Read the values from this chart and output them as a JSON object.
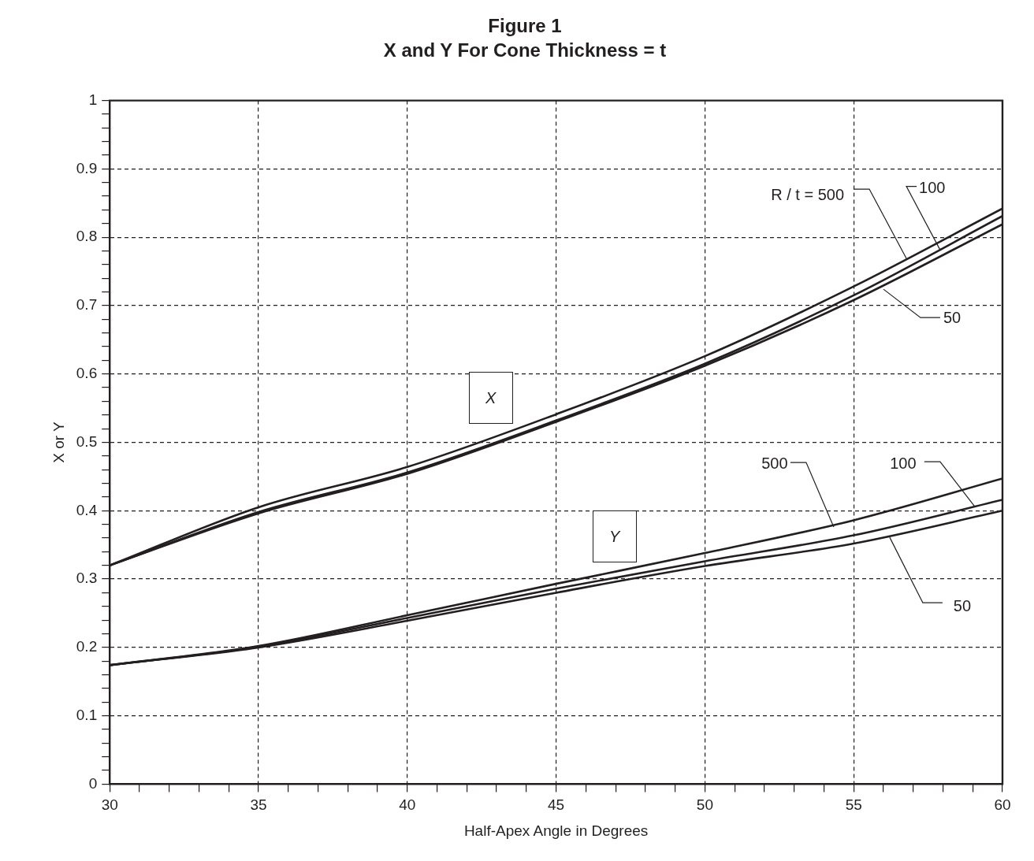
{
  "chart_data": {
    "type": "line",
    "title": "Figure 1",
    "subtitle": "X and Y For Cone Thickness = t",
    "xlabel": "Half-Apex Angle in Degrees",
    "ylabel": "X or Y",
    "x": [
      30,
      35,
      40,
      45,
      50,
      55,
      60
    ],
    "series": [
      {
        "color": "#231f20",
        "values": [
          0.32,
          0.405,
          0.464,
          0.541,
          0.626,
          0.728,
          0.842
        ]
      },
      {
        "color": "#231f20",
        "values": [
          0.32,
          0.398,
          0.456,
          0.532,
          0.615,
          0.715,
          0.831
        ]
      },
      {
        "color": "#231f20",
        "values": [
          0.32,
          0.396,
          0.454,
          0.53,
          0.612,
          0.708,
          0.819
        ]
      },
      {
        "color": "#231f20",
        "values": [
          0.174,
          0.202,
          0.247,
          0.293,
          0.338,
          0.386,
          0.447
        ]
      },
      {
        "color": "#231f20",
        "values": [
          0.174,
          0.201,
          0.243,
          0.286,
          0.326,
          0.364,
          0.416
        ]
      },
      {
        "color": "#231f20",
        "values": [
          0.174,
          0.2,
          0.239,
          0.28,
          0.319,
          0.352,
          0.4
        ]
      }
    ],
    "xlim": [
      30,
      60
    ],
    "xticks": [
      30,
      {
        "value": 31,
        "label": null
      },
      {
        "value": 32,
        "label": null
      },
      {
        "value": 33,
        "label": null
      },
      {
        "value": 34,
        "label": null
      },
      35,
      {
        "value": 36,
        "label": null
      },
      {
        "value": 37,
        "label": null
      },
      {
        "value": 38,
        "label": null
      },
      {
        "value": 39,
        "label": null
      },
      40,
      {
        "value": 41,
        "label": null
      },
      {
        "value": 42,
        "label": null
      },
      {
        "value": 43,
        "label": null
      },
      {
        "value": 44,
        "label": null
      },
      45,
      {
        "value": 46,
        "label": null
      },
      {
        "value": 47,
        "label": null
      },
      {
        "value": 48,
        "label": null
      },
      {
        "value": 49,
        "label": null
      },
      50,
      {
        "value": 51,
        "label": null
      },
      {
        "value": 52,
        "label": null
      },
      {
        "value": 53,
        "label": null
      },
      {
        "value": 54,
        "label": null
      },
      55,
      {
        "value": 56,
        "label": null
      },
      {
        "value": 57,
        "label": null
      },
      {
        "value": 58,
        "label": null
      },
      {
        "value": 59,
        "label": null
      },
      60
    ],
    "ylim": [
      0,
      1
    ],
    "yticks": [
      0,
      {
        "value": 0.02,
        "label": null
      },
      {
        "value": 0.04,
        "label": null
      },
      {
        "value": 0.06,
        "label": null
      },
      {
        "value": 0.08,
        "label": null
      },
      0.1,
      {
        "value": 0.12,
        "label": null
      },
      {
        "value": 0.14,
        "label": null
      },
      {
        "value": 0.16,
        "label": null
      },
      {
        "value": 0.18,
        "label": null
      },
      0.2,
      {
        "value": 0.22,
        "label": null
      },
      {
        "value": 0.24,
        "label": null
      },
      {
        "value": 0.26,
        "label": null
      },
      {
        "value": 0.28,
        "label": null
      },
      0.3,
      {
        "value": 0.32,
        "label": null
      },
      {
        "value": 0.34,
        "label": null
      },
      {
        "value": 0.36,
        "label": null
      },
      {
        "value": 0.38,
        "label": null
      },
      0.4,
      {
        "value": 0.42,
        "label": null
      },
      {
        "value": 0.44,
        "label": null
      },
      {
        "value": 0.46,
        "label": null
      },
      {
        "value": 0.48,
        "label": null
      },
      0.5,
      {
        "value": 0.52,
        "label": null
      },
      {
        "value": 0.54,
        "label": null
      },
      {
        "value": 0.56,
        "label": null
      },
      {
        "value": 0.58,
        "label": null
      },
      0.6,
      {
        "value": 0.62,
        "label": null
      },
      {
        "value": 0.64,
        "label": null
      },
      {
        "value": 0.66,
        "label": null
      },
      {
        "value": 0.68,
        "label": null
      },
      0.7,
      {
        "value": 0.72,
        "label": null
      },
      {
        "value": 0.74,
        "label": null
      },
      {
        "value": 0.76,
        "label": null
      },
      {
        "value": 0.78,
        "label": null
      },
      0.8,
      {
        "value": 0.82,
        "label": null
      },
      {
        "value": 0.84,
        "label": null
      },
      {
        "value": 0.86,
        "label": null
      },
      {
        "value": 0.88,
        "label": null
      },
      0.9,
      {
        "value": 0.92,
        "label": null
      },
      {
        "value": 0.94,
        "label": null
      },
      {
        "value": 0.96,
        "label": null
      },
      {
        "value": 0.98,
        "label": null
      },
      1
    ],
    "grid": true,
    "legend": false,
    "marker": "none",
    "line_style": "solid",
    "annotations": [
      {
        "text": "R / t = 500",
        "x": 56.77,
        "y": 0.769
      },
      {
        "text": "100",
        "x": 57.91,
        "y": 0.781
      },
      {
        "text": "50",
        "x": 56.0,
        "y": 0.724
      },
      "X",
      "Y",
      {
        "text": "500",
        "x": 54.33,
        "y": 0.376
      },
      {
        "text": "100",
        "x": 59.07,
        "y": 0.406
      },
      {
        "text": "50",
        "x": 56.21,
        "y": 0.361
      }
    ]
  }
}
